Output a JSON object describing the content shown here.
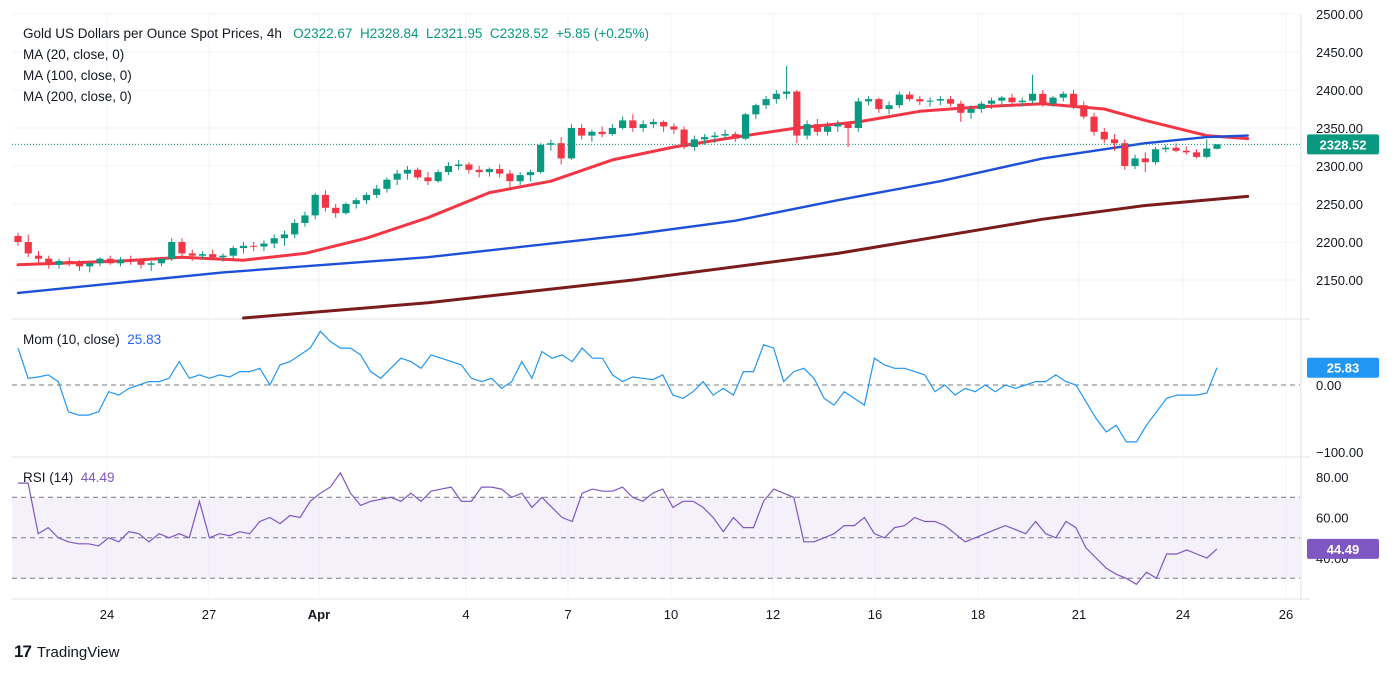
{
  "header": {
    "symbol": "Gold US Dollars per Ounce Spot Prices, 4h",
    "open": "O2322.67",
    "high": "H2328.84",
    "low": "L2321.95",
    "close": "C2328.52",
    "change": "+5.85 (+0.25%)",
    "ma20": "MA (20, close, 0)",
    "ma100": "MA (100, close, 0)",
    "ma200": "MA (200, close, 0)"
  },
  "mom_pane": {
    "label": "Mom (10, close)",
    "value": "25.83"
  },
  "rsi_pane": {
    "label": "RSI (14)",
    "value": "44.49"
  },
  "footer": {
    "brand": "TradingView",
    "logo": "17"
  },
  "colors": {
    "up": "#089981",
    "down": "#f23645",
    "ma20": "#f23645",
    "ma100": "#1e4fd8",
    "ma200": "#7b1b1b",
    "mom": "#2196f3",
    "rsi": "#7e57c2",
    "rsi_band": "#ede7f6"
  },
  "chart_data": [
    {
      "type": "candlestick",
      "title": "Gold US Dollars per Ounce Spot Prices, 4h",
      "ylim": [
        2100,
        2500
      ],
      "y_ticks": [
        2150,
        2200,
        2250,
        2300,
        2350,
        2400,
        2450,
        2500
      ],
      "y_tick_labels": [
        "2150.00",
        "2200.00",
        "2250.00",
        "2300.00",
        "2350.00",
        "2400.00",
        "2450.00",
        "2500.00"
      ],
      "x_tick_labels": [
        "24",
        "27",
        "Apr",
        "4",
        "7",
        "10",
        "12",
        "16",
        "18",
        "21",
        "24",
        "26"
      ],
      "last_price": 2328.52,
      "last_price_label": "2328.52",
      "candles": [
        [
          2208,
          2212,
          2195,
          2200
        ],
        [
          2200,
          2210,
          2180,
          2185
        ],
        [
          2182,
          2188,
          2172,
          2178
        ],
        [
          2178,
          2182,
          2165,
          2170
        ],
        [
          2170,
          2178,
          2165,
          2175
        ],
        [
          2175,
          2180,
          2168,
          2172
        ],
        [
          2172,
          2176,
          2162,
          2168
        ],
        [
          2168,
          2175,
          2160,
          2172
        ],
        [
          2172,
          2180,
          2168,
          2178
        ],
        [
          2178,
          2182,
          2170,
          2172
        ],
        [
          2172,
          2180,
          2168,
          2177
        ],
        [
          2177,
          2182,
          2170,
          2175
        ],
        [
          2175,
          2178,
          2165,
          2170
        ],
        [
          2170,
          2175,
          2162,
          2172
        ],
        [
          2172,
          2180,
          2168,
          2178
        ],
        [
          2178,
          2205,
          2175,
          2200
        ],
        [
          2200,
          2205,
          2180,
          2185
        ],
        [
          2185,
          2190,
          2175,
          2182
        ],
        [
          2182,
          2188,
          2178,
          2184
        ],
        [
          2184,
          2190,
          2176,
          2180
        ],
        [
          2180,
          2185,
          2174,
          2182
        ],
        [
          2182,
          2195,
          2178,
          2192
        ],
        [
          2192,
          2200,
          2185,
          2195
        ],
        [
          2195,
          2200,
          2188,
          2194
        ],
        [
          2194,
          2202,
          2188,
          2198
        ],
        [
          2198,
          2210,
          2192,
          2205
        ],
        [
          2205,
          2215,
          2195,
          2210
        ],
        [
          2210,
          2230,
          2205,
          2225
        ],
        [
          2225,
          2240,
          2220,
          2235
        ],
        [
          2235,
          2265,
          2230,
          2262
        ],
        [
          2262,
          2268,
          2240,
          2245
        ],
        [
          2245,
          2250,
          2232,
          2238
        ],
        [
          2238,
          2252,
          2236,
          2250
        ],
        [
          2250,
          2258,
          2244,
          2255
        ],
        [
          2255,
          2265,
          2250,
          2262
        ],
        [
          2262,
          2275,
          2258,
          2270
        ],
        [
          2270,
          2285,
          2265,
          2282
        ],
        [
          2282,
          2295,
          2275,
          2290
        ],
        [
          2290,
          2300,
          2282,
          2295
        ],
        [
          2295,
          2298,
          2282,
          2285
        ],
        [
          2285,
          2292,
          2275,
          2280
        ],
        [
          2280,
          2295,
          2278,
          2292
        ],
        [
          2292,
          2305,
          2288,
          2300
        ],
        [
          2300,
          2308,
          2295,
          2302
        ],
        [
          2302,
          2305,
          2290,
          2295
        ],
        [
          2295,
          2300,
          2285,
          2292
        ],
        [
          2292,
          2298,
          2286,
          2296
        ],
        [
          2296,
          2302,
          2285,
          2290
        ],
        [
          2290,
          2295,
          2272,
          2280
        ],
        [
          2280,
          2292,
          2275,
          2288
        ],
        [
          2288,
          2295,
          2280,
          2292
        ],
        [
          2292,
          2330,
          2290,
          2328
        ],
        [
          2328,
          2335,
          2320,
          2330
        ],
        [
          2330,
          2338,
          2302,
          2310
        ],
        [
          2310,
          2355,
          2308,
          2350
        ],
        [
          2350,
          2355,
          2335,
          2340
        ],
        [
          2340,
          2348,
          2332,
          2345
        ],
        [
          2345,
          2352,
          2338,
          2342
        ],
        [
          2342,
          2355,
          2340,
          2350
        ],
        [
          2350,
          2365,
          2348,
          2360
        ],
        [
          2360,
          2368,
          2345,
          2350
        ],
        [
          2350,
          2360,
          2345,
          2355
        ],
        [
          2355,
          2362,
          2350,
          2358
        ],
        [
          2358,
          2360,
          2345,
          2352
        ],
        [
          2352,
          2356,
          2342,
          2348
        ],
        [
          2348,
          2352,
          2322,
          2325
        ],
        [
          2325,
          2340,
          2320,
          2335
        ],
        [
          2335,
          2342,
          2328,
          2338
        ],
        [
          2338,
          2345,
          2330,
          2340
        ],
        [
          2340,
          2348,
          2335,
          2342
        ],
        [
          2342,
          2345,
          2332,
          2336
        ],
        [
          2336,
          2370,
          2334,
          2368
        ],
        [
          2368,
          2382,
          2362,
          2380
        ],
        [
          2380,
          2392,
          2375,
          2388
        ],
        [
          2388,
          2400,
          2382,
          2395
        ],
        [
          2395,
          2432,
          2388,
          2398
        ],
        [
          2398,
          2400,
          2330,
          2340
        ],
        [
          2340,
          2360,
          2335,
          2355
        ],
        [
          2355,
          2362,
          2340,
          2345
        ],
        [
          2345,
          2358,
          2340,
          2352
        ],
        [
          2352,
          2360,
          2345,
          2355
        ],
        [
          2355,
          2358,
          2325,
          2350
        ],
        [
          2350,
          2390,
          2345,
          2385
        ],
        [
          2385,
          2392,
          2380,
          2388
        ],
        [
          2388,
          2390,
          2370,
          2375
        ],
        [
          2375,
          2385,
          2368,
          2380
        ],
        [
          2380,
          2398,
          2376,
          2394
        ],
        [
          2394,
          2398,
          2385,
          2388
        ],
        [
          2388,
          2392,
          2380,
          2385
        ],
        [
          2385,
          2390,
          2378,
          2386
        ],
        [
          2386,
          2392,
          2380,
          2388
        ],
        [
          2388,
          2392,
          2378,
          2382
        ],
        [
          2382,
          2386,
          2358,
          2370
        ],
        [
          2370,
          2380,
          2362,
          2375
        ],
        [
          2375,
          2385,
          2370,
          2382
        ],
        [
          2382,
          2390,
          2375,
          2386
        ],
        [
          2386,
          2392,
          2378,
          2390
        ],
        [
          2390,
          2395,
          2380,
          2384
        ],
        [
          2384,
          2390,
          2378,
          2386
        ],
        [
          2386,
          2420,
          2382,
          2395
        ],
        [
          2395,
          2400,
          2378,
          2382
        ],
        [
          2382,
          2392,
          2378,
          2390
        ],
        [
          2390,
          2398,
          2385,
          2395
        ],
        [
          2395,
          2400,
          2375,
          2380
        ],
        [
          2380,
          2385,
          2362,
          2365
        ],
        [
          2365,
          2370,
          2340,
          2345
        ],
        [
          2345,
          2350,
          2330,
          2335
        ],
        [
          2335,
          2342,
          2320,
          2330
        ],
        [
          2330,
          2335,
          2295,
          2300
        ],
        [
          2300,
          2315,
          2296,
          2310
        ],
        [
          2310,
          2318,
          2292,
          2305
        ],
        [
          2305,
          2325,
          2302,
          2322
        ],
        [
          2322,
          2328,
          2318,
          2324
        ],
        [
          2324,
          2330,
          2318,
          2320
        ],
        [
          2320,
          2326,
          2315,
          2318
        ],
        [
          2318,
          2322,
          2310,
          2312
        ],
        [
          2312,
          2335,
          2310,
          2323
        ],
        [
          2322.67,
          2328.84,
          2321.95,
          2328.52
        ]
      ],
      "series": [
        {
          "name": "MA (20, close, 0)",
          "values": [
            [
              0,
              2170
            ],
            [
              10,
              2175
            ],
            [
              16,
              2180
            ],
            [
              22,
              2176
            ],
            [
              28,
              2185
            ],
            [
              34,
              2205
            ],
            [
              40,
              2232
            ],
            [
              46,
              2265
            ],
            [
              52,
              2280
            ],
            [
              58,
              2308
            ],
            [
              64,
              2325
            ],
            [
              70,
              2338
            ],
            [
              76,
              2350
            ],
            [
              82,
              2358
            ],
            [
              88,
              2372
            ],
            [
              94,
              2378
            ],
            [
              100,
              2382
            ],
            [
              106,
              2375
            ],
            [
              110,
              2360
            ],
            [
              116,
              2340
            ],
            [
              120,
              2336
            ]
          ]
        },
        {
          "name": "MA (100, close, 0)",
          "values": [
            [
              0,
              2133
            ],
            [
              20,
              2160
            ],
            [
              40,
              2180
            ],
            [
              60,
              2210
            ],
            [
              70,
              2228
            ],
            [
              80,
              2255
            ],
            [
              90,
              2280
            ],
            [
              100,
              2310
            ],
            [
              110,
              2330
            ],
            [
              116,
              2338
            ],
            [
              120,
              2340
            ]
          ]
        },
        {
          "name": "MA (200, close, 0)",
          "values": [
            [
              22,
              2100
            ],
            [
              40,
              2120
            ],
            [
              60,
              2150
            ],
            [
              80,
              2185
            ],
            [
              100,
              2230
            ],
            [
              110,
              2248
            ],
            [
              120,
              2260
            ]
          ]
        }
      ]
    },
    {
      "type": "line",
      "title": "Mom (10, close)",
      "ylim": [
        -100,
        80
      ],
      "y_ticks": [
        0,
        -100
      ],
      "y_tick_labels": [
        "0.00",
        "−100.00"
      ],
      "last_value": 25.83,
      "values": [
        55,
        10,
        12,
        15,
        5,
        -40,
        -45,
        -45,
        -40,
        -10,
        -15,
        -5,
        0,
        5,
        5,
        10,
        35,
        10,
        15,
        10,
        15,
        12,
        20,
        20,
        25,
        0,
        30,
        35,
        45,
        55,
        80,
        65,
        55,
        55,
        45,
        20,
        10,
        25,
        40,
        35,
        25,
        45,
        40,
        35,
        30,
        10,
        5,
        10,
        -5,
        5,
        35,
        10,
        50,
        40,
        45,
        35,
        55,
        40,
        40,
        15,
        5,
        12,
        10,
        8,
        15,
        -15,
        -20,
        -10,
        5,
        -15,
        -5,
        -15,
        20,
        20,
        60,
        55,
        5,
        20,
        25,
        10,
        -20,
        -30,
        -10,
        -20,
        -30,
        40,
        30,
        25,
        25,
        20,
        15,
        -10,
        0,
        -15,
        -5,
        -10,
        0,
        -10,
        0,
        -5,
        0,
        5,
        5,
        15,
        5,
        0,
        -25,
        -50,
        -70,
        -60,
        -85,
        -85,
        -60,
        -40,
        -20,
        -15,
        -15,
        -15,
        -12,
        25.83
      ]
    },
    {
      "type": "line",
      "title": "RSI (14)",
      "ylim": [
        25,
        85
      ],
      "y_ticks": [
        80,
        60,
        40
      ],
      "y_tick_labels": [
        "80.00",
        "60.00",
        "40.00"
      ],
      "bands": [
        30,
        50,
        70
      ],
      "last_value": 44.49,
      "values": [
        77,
        77,
        52,
        55,
        50,
        48,
        47,
        47,
        46,
        50,
        48,
        53,
        52,
        48,
        52,
        50,
        52,
        50,
        68,
        50,
        52,
        51,
        53,
        52,
        58,
        60,
        57,
        61,
        60,
        68,
        72,
        75,
        82,
        72,
        66,
        68,
        69,
        70,
        68,
        72,
        68,
        73,
        74,
        75,
        68,
        68,
        75,
        75,
        74,
        70,
        72,
        65,
        70,
        65,
        60,
        58,
        72,
        74,
        73,
        73,
        75,
        70,
        68,
        72,
        74,
        65,
        68,
        68,
        65,
        60,
        53,
        60,
        55,
        55,
        68,
        74,
        72,
        70,
        48,
        48,
        50,
        52,
        56,
        56,
        60,
        52,
        50,
        55,
        56,
        60,
        58,
        58,
        56,
        52,
        48,
        50,
        52,
        54,
        56,
        54,
        52,
        58,
        52,
        50,
        58,
        55,
        45,
        40,
        35,
        32,
        30,
        27,
        33,
        30,
        42,
        42,
        44,
        42,
        40,
        44.49
      ]
    }
  ]
}
